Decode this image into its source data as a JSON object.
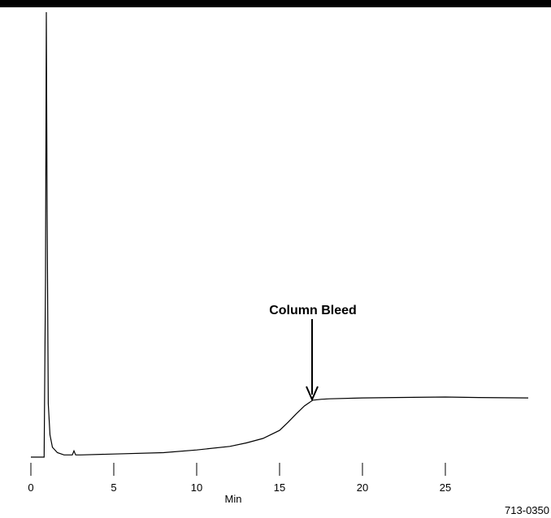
{
  "chart_data": {
    "type": "line",
    "annotation": "Column Bleed",
    "xlabel": "Min",
    "figure_code": "713-0350",
    "color": "#000000",
    "x": [
      0,
      0.8,
      0.88,
      0.93,
      0.98,
      1.05,
      1.15,
      1.3,
      1.6,
      2,
      2.5,
      2.6,
      2.7,
      3,
      5,
      8,
      10,
      12,
      13,
      14,
      15,
      15.5,
      16,
      16.5,
      17,
      17.5,
      18,
      20,
      22,
      25,
      27,
      30
    ],
    "values": [
      0,
      0,
      40,
      100,
      55,
      12,
      5,
      2.2,
      1,
      0.5,
      0.5,
      1.4,
      0.5,
      0.5,
      0.7,
      1,
      1.6,
      2.4,
      3.2,
      4.2,
      6,
      7.8,
      9.7,
      11.5,
      12.8,
      13,
      13.1,
      13.3,
      13.4,
      13.5,
      13.4,
      13.3
    ],
    "xlim": [
      0,
      30
    ],
    "ylim": [
      0,
      100
    ],
    "xticks": [
      0,
      5,
      10,
      15,
      20,
      25
    ]
  }
}
